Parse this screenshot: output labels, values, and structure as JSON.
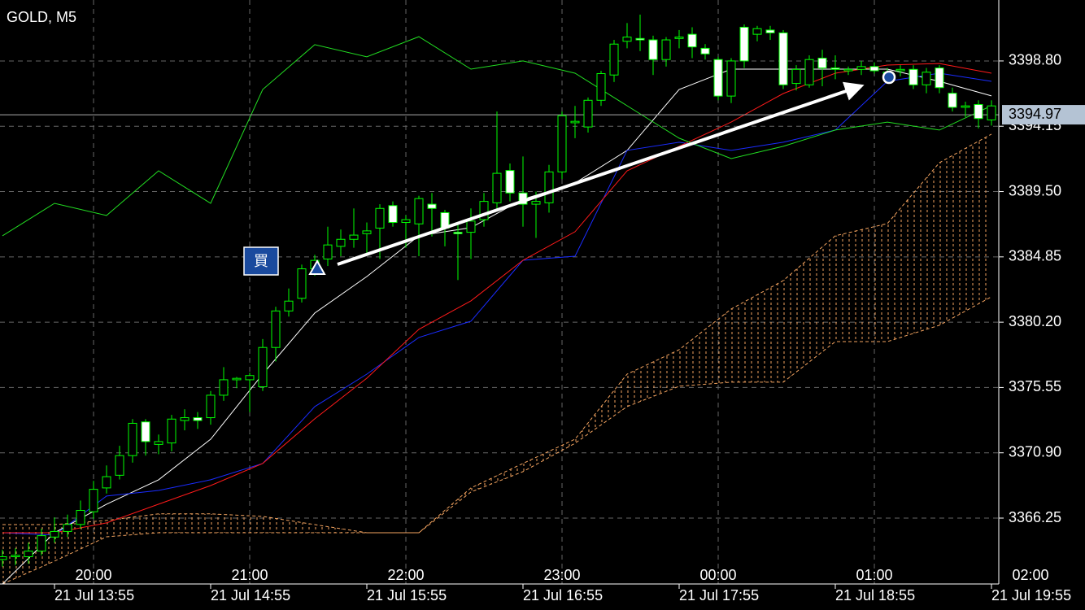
{
  "chart_data": {
    "type": "candlestick",
    "title": "GOLD, M5",
    "x": [
      -35,
      -30,
      -25,
      -20,
      -15,
      -10,
      -5,
      0,
      5,
      10,
      15,
      20,
      25,
      30,
      35,
      40,
      45,
      50,
      55,
      60,
      65,
      70,
      75,
      80,
      85,
      90,
      95,
      100,
      105,
      110,
      115,
      120,
      125,
      130,
      135,
      140,
      145,
      150,
      155,
      160,
      165,
      170,
      175,
      180,
      185,
      190,
      195,
      200,
      205,
      210,
      215,
      220,
      225,
      230,
      235,
      240,
      245,
      250,
      255,
      260,
      265,
      270,
      275,
      280,
      285,
      290,
      295,
      300,
      305,
      310,
      315,
      320,
      325,
      330,
      335,
      340,
      345
    ],
    "open": [
      3363.3,
      3363.5,
      3363.5,
      3363.9,
      3364.9,
      3365.3,
      3365.8,
      3366.7,
      3368.4,
      3369.3,
      3370.7,
      3373.1,
      3371.5,
      3371.6,
      3373.2,
      3373.4,
      3373.4,
      3375,
      3376.1,
      3376.1,
      3375.6,
      3378.4,
      3381,
      3381.9,
      3384,
      3384.7,
      3385.6,
      3386.1,
      3386.5,
      3386.9,
      3388.5,
      3387.3,
      3387.2,
      3388.6,
      3388,
      3386.6,
      3386.6,
      3387.5,
      3388.7,
      3391,
      3389.4,
      3388.6,
      3388.7,
      3390.9,
      3394.4,
      3394.1,
      3396,
      3397.8,
      3400.2,
      3400.4,
      3400.3,
      3398.9,
      3400.4,
      3400.7,
      3399.7,
      3398.9,
      3396.3,
      3401.2,
      3400.7,
      3401,
      3400.8,
      3397.2,
      3397.1,
      3399,
      3398.3,
      3398.1,
      3398.2,
      3398.4,
      3398,
      3398.1,
      3398.2,
      3397.1,
      3398.3,
      3396.5,
      3395.5,
      3395.7,
      3394.6
    ],
    "high": [
      3364,
      3364.1,
      3364.5,
      3365.5,
      3366.3,
      3366.5,
      3367.5,
      3368.9,
      3370,
      3371.4,
      3373.3,
      3373.3,
      3372.2,
      3373.6,
      3374,
      3373.8,
      3375.3,
      3377,
      3376.3,
      3376.6,
      3379,
      3381.3,
      3382.6,
      3384.3,
      3385,
      3387,
      3386.8,
      3388.3,
      3387.3,
      3388.6,
      3388.8,
      3387.8,
      3389.2,
      3389.4,
      3388.2,
      3387.3,
      3388.3,
      3389.4,
      3395.2,
      3391.5,
      3392,
      3389.5,
      3391.4,
      3395.2,
      3395.6,
      3396.2,
      3398.1,
      3400.3,
      3401.5,
      3402.1,
      3400.6,
      3400.5,
      3401,
      3401.2,
      3400,
      3399.1,
      3399,
      3401.4,
      3401.3,
      3401.3,
      3401,
      3398.5,
      3399.2,
      3399.6,
      3399.2,
      3398.4,
      3398.8,
      3398.7,
      3398.3,
      3398.5,
      3398.5,
      3398.3,
      3398.5,
      3396.9,
      3395.9,
      3396,
      3396
    ],
    "low": [
      3362.8,
      3362.9,
      3363,
      3363.6,
      3364.5,
      3364.9,
      3365.5,
      3366.2,
      3368,
      3369,
      3370.2,
      3370.7,
      3370.8,
      3371,
      3372.5,
      3372.6,
      3372.9,
      3374.6,
      3375.5,
      3373.8,
      3375.3,
      3377.4,
      3380.6,
      3381.6,
      3383.5,
      3384.2,
      3384.9,
      3385.5,
      3385,
      3384.7,
      3387,
      3385.5,
      3384.9,
      3386.3,
      3385.6,
      3383.2,
      3384.7,
      3387,
      3388.1,
      3388.8,
      3387,
      3386.2,
      3388,
      3390.4,
      3393.3,
      3393.7,
      3395.6,
      3397.3,
      3399.7,
      3399.5,
      3397.8,
      3398.4,
      3399.7,
      3399,
      3398.9,
      3396,
      3395.8,
      3398.3,
      3400.2,
      3400.3,
      3396.8,
      3396.7,
      3396.9,
      3397,
      3397.5,
      3397.8,
      3397.8,
      3397.9,
      3397.6,
      3397.7,
      3396.8,
      3396.5,
      3396.5,
      3395.2,
      3394.8,
      3394,
      3394.2
    ],
    "close": [
      3363.5,
      3363.6,
      3363.9,
      3365,
      3365.3,
      3365.8,
      3366.8,
      3368.3,
      3369.2,
      3370.7,
      3373,
      3371.7,
      3371.7,
      3373.3,
      3373.4,
      3373.2,
      3375,
      3376.1,
      3376.2,
      3376.4,
      3378.4,
      3381,
      3381.7,
      3384,
      3384.6,
      3385.7,
      3386.1,
      3386.4,
      3386.7,
      3388.3,
      3387.3,
      3387.5,
      3389,
      3388.3,
      3386.9,
      3386.5,
      3387.4,
      3388.8,
      3390.8,
      3389.4,
      3388.6,
      3388.8,
      3390.9,
      3394.9,
      3394.5,
      3396,
      3397.9,
      3400,
      3400.5,
      3400.3,
      3398.9,
      3400.3,
      3400.5,
      3399.8,
      3399.3,
      3396.3,
      3398.8,
      3398.8,
      3401.1,
      3400.8,
      3397.1,
      3398.2,
      3398.9,
      3398.3,
      3398.2,
      3398.2,
      3398.4,
      3398.1,
      3398,
      3398.2,
      3397.1,
      3398,
      3396.9,
      3395.5,
      3395.6,
      3394.7,
      3395.6
    ],
    "up_color": "#00ff00",
    "down_color": "#ffffff",
    "lines": [
      {
        "color": "#ffffff",
        "x": [
          -35,
          -15,
          5,
          25,
          45,
          65,
          85,
          105,
          125,
          145,
          165,
          185,
          205,
          225,
          245,
          265,
          285,
          305,
          325,
          345
        ],
        "values": [
          3361.56,
          3365.21,
          3367.24,
          3368.98,
          3371.87,
          3376.5,
          3380.85,
          3383.45,
          3386.35,
          3386.93,
          3388.95,
          3390.11,
          3392.43,
          3396.77,
          3398.22,
          3398.22,
          3398.22,
          3398.22,
          3397.35,
          3396.31
        ]
      },
      {
        "color": "#1a2cff",
        "x": [
          -35,
          -15,
          5,
          25,
          45,
          65,
          85,
          105,
          125,
          145,
          165,
          185,
          205,
          225,
          245,
          265,
          285,
          305,
          325,
          345
        ],
        "values": [
          3365.21,
          3365.04,
          3367.82,
          3368.22,
          3368.98,
          3370.14,
          3374.19,
          3376.5,
          3379.11,
          3380.27,
          3384.61,
          3384.9,
          3392.43,
          3393.01,
          3392.43,
          3393.01,
          3393.88,
          3397.35,
          3397.93,
          3397.35
        ]
      },
      {
        "color": "#ff1a1a",
        "x": [
          -35,
          -15,
          5,
          25,
          45,
          65,
          85,
          105,
          125,
          145,
          165,
          185,
          205,
          225,
          245,
          265,
          285,
          305,
          325,
          345
        ],
        "values": [
          3365.21,
          3365.21,
          3365.91,
          3367.24,
          3368.57,
          3370.14,
          3373.32,
          3376.21,
          3379.69,
          3381.72,
          3384.61,
          3386.64,
          3390.98,
          3392.72,
          3394.45,
          3396.48,
          3397.93,
          3398.51,
          3398.62,
          3397.93
        ]
      },
      {
        "color": "#22dd22",
        "x": [
          -35,
          -15,
          5,
          25,
          45,
          65,
          85,
          105,
          125,
          145,
          165,
          185,
          205,
          225,
          245,
          265,
          285,
          305,
          325,
          345
        ],
        "values": [
          3386.35,
          3388.66,
          3387.8,
          3390.98,
          3388.66,
          3396.77,
          3399.96,
          3399.09,
          3400.53,
          3398.22,
          3398.8,
          3397.93,
          3395.61,
          3393.3,
          3391.85,
          3392.72,
          3393.88,
          3394.45,
          3393.88,
          3395.61
        ]
      }
    ],
    "cloud": [
      {
        "color": "#f4a460",
        "x": [
          -35,
          -15,
          5,
          25,
          45,
          65,
          85,
          105,
          125,
          145,
          165,
          185,
          205,
          225,
          245,
          265,
          285,
          305,
          325,
          345
        ],
        "values": [
          3365.79,
          3365.79,
          3366.08,
          3366.55,
          3366.55,
          3366.37,
          3365.79,
          3365.21,
          3365.21,
          3368.4,
          3370.14,
          3371.87,
          3376.5,
          3378.24,
          3381.14,
          3383.16,
          3386.35,
          3387.22,
          3391.56,
          3393.59
        ]
      },
      {
        "color": "#f4a460",
        "x": [
          -35,
          -15,
          5,
          25,
          45,
          65,
          85,
          105,
          125,
          145,
          165,
          185,
          205,
          225,
          245,
          265,
          285,
          305,
          325,
          345
        ],
        "values": [
          3361.56,
          3363.19,
          3364.92,
          3365.21,
          3365.21,
          3365.21,
          3365.21,
          3365.21,
          3365.21,
          3368.11,
          3369.56,
          3371.58,
          3374.19,
          3375.64,
          3375.93,
          3375.93,
          3378.82,
          3378.82,
          3379.98,
          3382.01
        ]
      }
    ],
    "last_price": 3394.97,
    "annotations": {
      "buy_label": "買"
    },
    "xlim": [
      -35.94,
      347.81
    ],
    "ylim": [
      3361.56,
      3403.14
    ],
    "xticks": [
      {
        "value": 0,
        "label": "20:00"
      },
      {
        "value": 60,
        "label": "21:00"
      },
      {
        "value": 120,
        "label": "22:00"
      },
      {
        "value": 180,
        "label": "23:00"
      },
      {
        "value": 240,
        "label": "00:00"
      },
      {
        "value": 300,
        "label": "01:00"
      },
      {
        "value": 360,
        "label": "02:00"
      }
    ],
    "xticks2": [
      {
        "value": -15,
        "label": "21 Jul 13:55"
      },
      {
        "value": 45,
        "label": "21 Jul 14:55"
      },
      {
        "value": 105,
        "label": "21 Jul 15:55"
      },
      {
        "value": 165,
        "label": "21 Jul 16:55"
      },
      {
        "value": 225,
        "label": "21 Jul 17:55"
      },
      {
        "value": 285,
        "label": "21 Jul 18:55"
      },
      {
        "value": 345,
        "label": "21 Jul 19:55"
      }
    ],
    "yticks": [
      3366.25,
      {
        "value": 3370.9,
        "label": "3370.90"
      },
      3375.55,
      {
        "value": 3380.2,
        "label": "3380.20"
      },
      3384.85,
      {
        "value": 3389.5,
        "label": "3389.50"
      },
      3394.15,
      {
        "value": 3398.8,
        "label": "3398.80"
      }
    ],
    "grid": true
  }
}
